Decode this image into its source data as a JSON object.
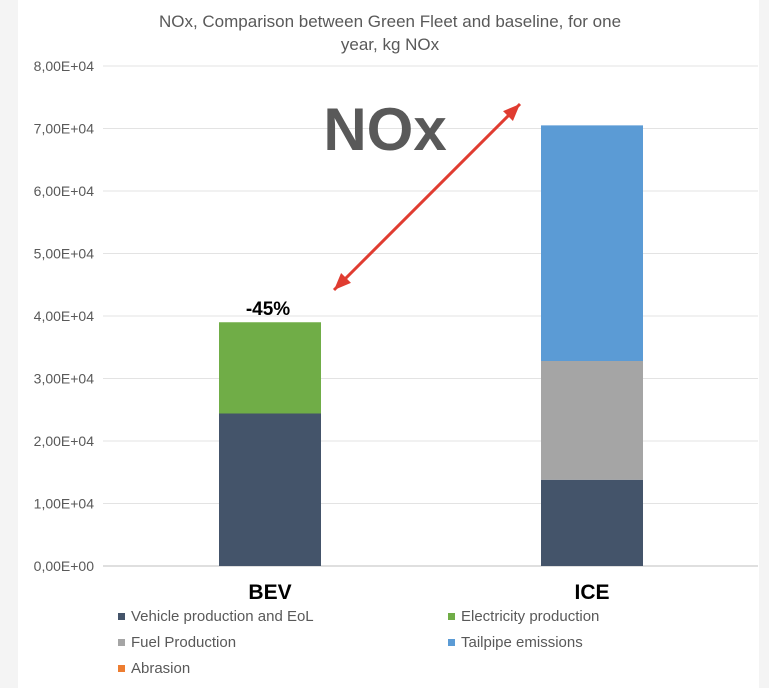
{
  "chart_data": {
    "type": "bar",
    "stacked": true,
    "title": "NOx, Comparison between Green Fleet and baseline, for one year, kg NOx",
    "categories": [
      "BEV",
      "ICE"
    ],
    "series": [
      {
        "name": "Vehicle production and EoL",
        "color": "#44546a",
        "values": [
          24400,
          13800
        ]
      },
      {
        "name": "Electricity production",
        "color": "#70ad47",
        "values": [
          14600,
          0
        ]
      },
      {
        "name": "Fuel Production",
        "color": "#a5a5a5",
        "values": [
          0,
          19000
        ]
      },
      {
        "name": "Tailpipe emissions",
        "color": "#5b9bd5",
        "values": [
          0,
          37700
        ]
      },
      {
        "name": "Abrasion",
        "color": "#ed7d31",
        "values": [
          0,
          0
        ]
      }
    ],
    "ylim": [
      0,
      80000
    ],
    "yticks": [
      0,
      10000,
      20000,
      30000,
      40000,
      50000,
      60000,
      70000,
      80000
    ],
    "ytick_labels": [
      "0,00E+00",
      "1,00E+04",
      "2,00E+04",
      "3,00E+04",
      "4,00E+04",
      "5,00E+04",
      "6,00E+04",
      "7,00E+04",
      "8,00E+04"
    ],
    "grid": true,
    "legend_position": "bottom",
    "annotations": {
      "big_label": "NOx",
      "reduction_label": "-45%",
      "arrow_color": "#e03c31"
    }
  }
}
